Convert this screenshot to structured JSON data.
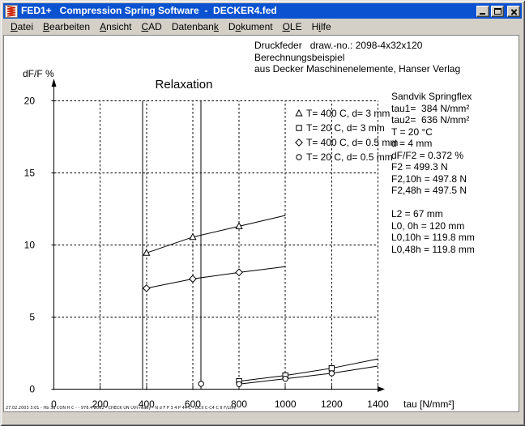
{
  "window": {
    "title": "FED1+   Compression Spring Software  -  DECKER4.fed",
    "controls": [
      "minimize-icon",
      "maximize-icon",
      "close-icon"
    ]
  },
  "menu": {
    "items": [
      {
        "label": "Datei",
        "u": 0
      },
      {
        "label": "Bearbeiten",
        "u": 0
      },
      {
        "label": "Ansicht",
        "u": 0
      },
      {
        "label": "CAD",
        "u": 0
      },
      {
        "label": "Datenbank",
        "u": 8
      },
      {
        "label": "Dokument",
        "u": 1
      },
      {
        "label": "OLE",
        "u": 0
      },
      {
        "label": "Hilfe",
        "u": 1
      }
    ]
  },
  "header_lines": [
    "Druckfeder   draw.-no.: 2098-4x32x120",
    "Berechnungsbeispiel",
    "aus Decker Maschinenelemente, Hanser Verlag"
  ],
  "info_panel": {
    "lines": [
      "Sandvik Springflex",
      "tau1=  384 N/mm²",
      "tau2=  636 N/mm²",
      "T = 20 °C",
      "d = 4 mm",
      "dF/F2 = 0.372 %",
      "F2 = 499.3 N",
      "F2,10h = 497.8 N",
      "F2,48h = 497.5 N",
      "",
      "L2 = 67 mm",
      "L0, 0h = 120 mm",
      "L0,10h = 119.8 mm",
      "L0,48h = 119.8 mm"
    ]
  },
  "footer": {
    "text": "27.02.2003 3:01 - Hb 3d CON H C - - 978.4 2002 - CHECK UN UVt-ready - N d F P 3 4 P 44 C - DCII C-C4 C II F/Ltim"
  },
  "colors": {
    "titlebar": "#0a52d0",
    "chrome": "#d4d0c8",
    "client": "#ffffff",
    "ink": "#000000",
    "spring_icon_red": "#cc2200"
  },
  "chart_data": {
    "type": "line",
    "title": "Relaxation",
    "xlabel": "tau [N/mm²]",
    "ylabel": "dF/F %",
    "xlim": [
      0,
      1400
    ],
    "ylim": [
      0,
      20
    ],
    "x_ticks": [
      0,
      200,
      400,
      600,
      800,
      1000,
      1200,
      1400
    ],
    "y_ticks": [
      0,
      5,
      10,
      15,
      20
    ],
    "grid": "dashed",
    "legend_position": "upper right",
    "reference_lines_x": [
      {
        "label": "tau1",
        "value": 384
      },
      {
        "label": "tau2",
        "value": 636
      }
    ],
    "series": [
      {
        "name": "T= 400 C,  d= 3 mm",
        "marker": "triangle",
        "x": [
          400,
          600,
          800,
          1000
        ],
        "y": [
          9.45,
          10.55,
          11.3,
          12.05
        ],
        "marker_points": 3
      },
      {
        "name": "T= 20 C,  d= 3 mm",
        "marker": "square",
        "x": [
          800,
          1000,
          1200,
          1400
        ],
        "y": [
          0.55,
          0.95,
          1.45,
          2.1
        ],
        "marker_points": 3
      },
      {
        "name": "T= 400 C,  d= 0.5 mm",
        "marker": "diamond",
        "x": [
          400,
          600,
          800,
          1000
        ],
        "y": [
          7.0,
          7.65,
          8.1,
          8.5
        ],
        "marker_points": 3
      },
      {
        "name": "T= 20 C,  d= 0.5 mm",
        "marker": "circle",
        "x": [
          800,
          1000,
          1200,
          1400
        ],
        "y": [
          0.35,
          0.72,
          1.1,
          1.6
        ],
        "marker_points": 3
      }
    ],
    "point_markers": [
      {
        "note": "operating point dF/F2 at tau2",
        "marker": "circle",
        "x": 636,
        "y": 0.37
      }
    ]
  }
}
